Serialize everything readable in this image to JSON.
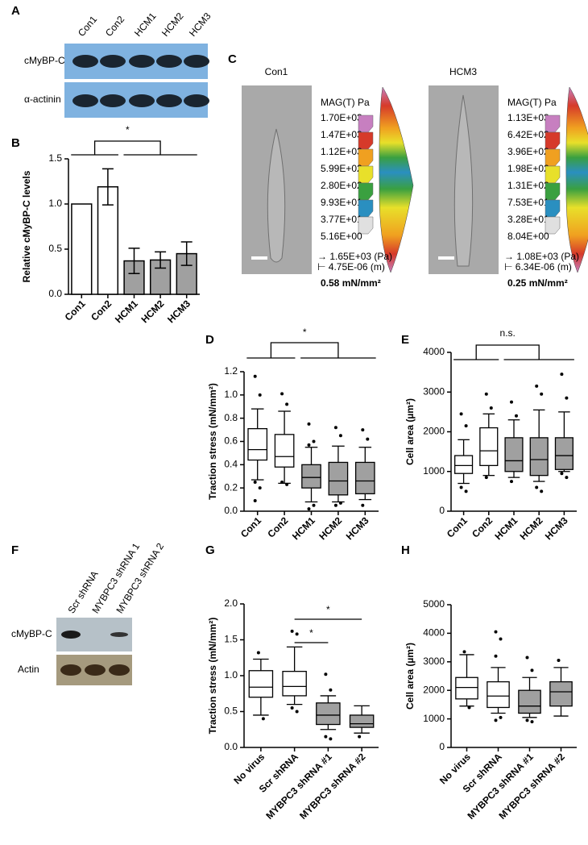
{
  "panels": {
    "A": {
      "label": "A",
      "lanes": [
        "Con1",
        "Con2",
        "HCM1",
        "HCM2",
        "HCM3"
      ],
      "rows": [
        "cMyBP-C",
        "α-actinin"
      ]
    },
    "C": {
      "label": "C",
      "cells": [
        {
          "name": "Con1",
          "legend_title": "MAG(T) Pa",
          "scale_values": [
            "1.70E+03",
            "1.47E+03",
            "1.12E+03",
            "5.99E+02",
            "2.80E+02",
            "9.93E+01",
            "3.77E+01",
            "5.16E+00"
          ],
          "vector_scale": "→ 1.65E+03 (Pa)",
          "length_scale": "⊢ 4.75E-06 (m)",
          "stress": "0.58 mN/mm²"
        },
        {
          "name": "HCM3",
          "legend_title": "MAG(T) Pa",
          "scale_values": [
            "1.13E+03",
            "6.42E+02",
            "3.96E+02",
            "1.98E+02",
            "1.31E+02",
            "7.53E+01",
            "3.28E+01",
            "8.04E+00"
          ],
          "vector_scale": "→ 1.08E+03 (Pa)",
          "length_scale": "⊢ 6.34E-06 (m)",
          "stress": "0.25 mN/mm²"
        }
      ]
    },
    "F": {
      "label": "F",
      "lanes": [
        "Scr shRNA",
        "MYBPC3 shRNA 1",
        "MYBPC3 shRNA 2"
      ],
      "rows": [
        "cMyBP-C",
        "Actin"
      ]
    }
  },
  "chart_data": [
    {
      "type": "bar",
      "label": "B",
      "ylabel": "Relative cMyBP-C levels",
      "categories": [
        "Con1",
        "Con2",
        "HCM1",
        "HCM2",
        "HCM3"
      ],
      "values": [
        1.0,
        1.19,
        0.37,
        0.38,
        0.45
      ],
      "errors": [
        null,
        0.2,
        0.14,
        0.09,
        0.13
      ],
      "colors": [
        "#ffffff",
        "#ffffff",
        "#a0a0a0",
        "#a0a0a0",
        "#a0a0a0"
      ],
      "ylim": [
        0,
        1.5
      ],
      "yticks": [
        {
          "value": 0,
          "label": "0.0"
        },
        0.5,
        {
          "value": 1,
          "label": "1.0"
        },
        1.5
      ],
      "annotations": [
        "*"
      ]
    },
    {
      "type": "box",
      "label": "D",
      "ylabel": "Traction stress (mN/mm²)",
      "categories": [
        "Con1",
        "Con2",
        "HCM1",
        "HCM2",
        "HCM3"
      ],
      "boxes": [
        {
          "low": 0.27,
          "q1": 0.44,
          "median": 0.53,
          "q3": 0.71,
          "high": 0.88,
          "outliers": [
            1.16,
            1.0,
            0.25,
            0.2,
            0.09
          ]
        },
        {
          "low": 0.24,
          "q1": 0.38,
          "median": 0.47,
          "q3": 0.66,
          "high": 0.86,
          "outliers": [
            1.01,
            0.92,
            0.25,
            0.23
          ]
        },
        {
          "low": 0.08,
          "q1": 0.2,
          "median": 0.29,
          "q3": 0.4,
          "high": 0.55,
          "outliers": [
            0.75,
            0.6,
            0.57,
            0.05,
            0.02
          ]
        },
        {
          "low": 0.08,
          "q1": 0.14,
          "median": 0.26,
          "q3": 0.42,
          "high": 0.56,
          "outliers": [
            0.72,
            0.65,
            0.05,
            0.07
          ]
        },
        {
          "low": 0.1,
          "q1": 0.15,
          "median": 0.26,
          "q3": 0.42,
          "high": 0.55,
          "outliers": [
            0.7,
            0.62,
            0.05
          ]
        }
      ],
      "colors": [
        "#ffffff",
        "#ffffff",
        "#a0a0a0",
        "#a0a0a0",
        "#a0a0a0"
      ],
      "ylim": [
        0,
        1.2
      ],
      "yticks": [
        {
          "value": 0,
          "label": "0.0"
        },
        0.2,
        0.4,
        0.6,
        0.8,
        {
          "value": 1,
          "label": "1.0"
        },
        1.2
      ],
      "annotations": [
        "*"
      ]
    },
    {
      "type": "box",
      "label": "E",
      "ylabel": "Cell area (µm²)",
      "categories": [
        "Con1",
        "Con2",
        "HCM1",
        "HCM2",
        "HCM3"
      ],
      "boxes": [
        {
          "low": 700,
          "q1": 950,
          "median": 1150,
          "q3": 1400,
          "high": 1800,
          "outliers": [
            2450,
            2150,
            600,
            500
          ]
        },
        {
          "low": 900,
          "q1": 1150,
          "median": 1520,
          "q3": 2100,
          "high": 2450,
          "outliers": [
            2950,
            2600,
            850
          ]
        },
        {
          "low": 850,
          "q1": 1000,
          "median": 1270,
          "q3": 1850,
          "high": 2300,
          "outliers": [
            2750,
            2400,
            750
          ]
        },
        {
          "low": 750,
          "q1": 900,
          "median": 1300,
          "q3": 1850,
          "high": 2550,
          "outliers": [
            3150,
            2950,
            600,
            500
          ]
        },
        {
          "low": 1000,
          "q1": 1050,
          "median": 1400,
          "q3": 1850,
          "high": 2500,
          "outliers": [
            3450,
            2850,
            950,
            850
          ]
        }
      ],
      "colors": [
        "#ffffff",
        "#ffffff",
        "#a0a0a0",
        "#a0a0a0",
        "#a0a0a0"
      ],
      "ylim": [
        0,
        4000
      ],
      "yticks": [
        0,
        1000,
        2000,
        3000,
        4000
      ],
      "annotations": [
        "n.s."
      ]
    },
    {
      "type": "box",
      "label": "G",
      "ylabel": "Traction stress (mN/mm²)",
      "categories": [
        "No virus",
        "Scr shRNA",
        "MYBPC3 shRNA #1",
        "MYBPC3 shRNA #2"
      ],
      "boxes": [
        {
          "low": 0.45,
          "q1": 0.7,
          "median": 0.84,
          "q3": 1.07,
          "high": 1.23,
          "outliers": [
            1.32,
            0.4
          ]
        },
        {
          "low": 0.6,
          "q1": 0.72,
          "median": 0.85,
          "q3": 1.06,
          "high": 1.4,
          "outliers": [
            1.62,
            1.58,
            0.55,
            0.5
          ]
        },
        {
          "low": 0.25,
          "q1": 0.32,
          "median": 0.45,
          "q3": 0.62,
          "high": 0.72,
          "outliers": [
            1.02,
            0.8,
            0.15,
            0.12
          ]
        },
        {
          "low": 0.2,
          "q1": 0.28,
          "median": 0.33,
          "q3": 0.45,
          "high": 0.58,
          "outliers": [
            0.15
          ]
        }
      ],
      "colors": [
        "#ffffff",
        "#ffffff",
        "#a0a0a0",
        "#a0a0a0"
      ],
      "ylim": [
        0,
        2.0
      ],
      "yticks": [
        {
          "value": 0,
          "label": "0.0"
        },
        0.5,
        {
          "value": 1,
          "label": "1.0"
        },
        1.5,
        {
          "value": 2,
          "label": "2.0"
        }
      ],
      "annotations": [
        "*",
        "*"
      ]
    },
    {
      "type": "box",
      "label": "H",
      "ylabel": "Cell area (µm²)",
      "categories": [
        "No virus",
        "Scr shRNA",
        "MYBPC3 shRNA #1",
        "MYBPC3 shRNA #2"
      ],
      "boxes": [
        {
          "low": 1450,
          "q1": 1700,
          "median": 2100,
          "q3": 2450,
          "high": 3250,
          "outliers": [
            3350,
            1400
          ]
        },
        {
          "low": 1200,
          "q1": 1400,
          "median": 1800,
          "q3": 2300,
          "high": 2800,
          "outliers": [
            4050,
            3800,
            3200,
            1050,
            950
          ]
        },
        {
          "low": 1050,
          "q1": 1200,
          "median": 1450,
          "q3": 2000,
          "high": 2450,
          "outliers": [
            3150,
            2700,
            950,
            900
          ]
        },
        {
          "low": 1100,
          "q1": 1450,
          "median": 1950,
          "q3": 2300,
          "high": 2800,
          "outliers": [
            3050
          ]
        }
      ],
      "colors": [
        "#ffffff",
        "#ffffff",
        "#a0a0a0",
        "#a0a0a0"
      ],
      "ylim": [
        0,
        5000
      ],
      "yticks": [
        0,
        1000,
        2000,
        3000,
        4000,
        5000
      ],
      "annotations": []
    }
  ]
}
